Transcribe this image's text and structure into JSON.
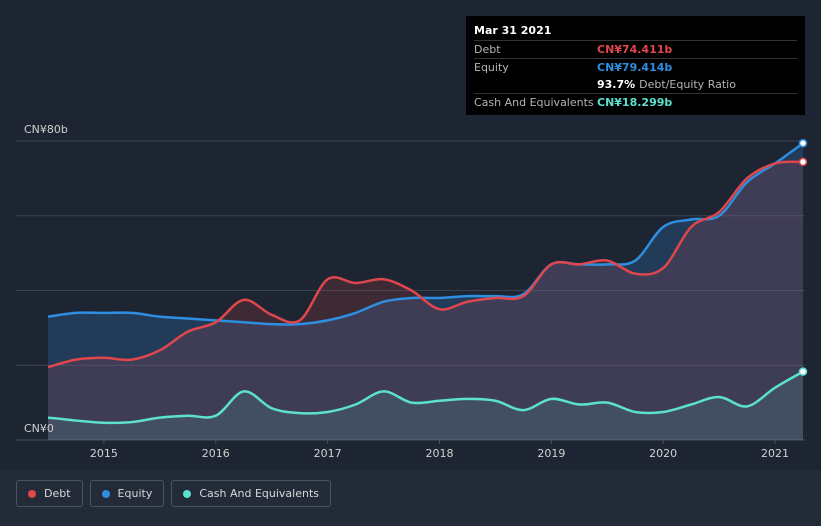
{
  "chart_data": {
    "type": "area",
    "currency_unit": "CN¥ b",
    "ylim": [
      0,
      80
    ],
    "y_tick_labels": [
      "CN¥0",
      "CN¥80b"
    ],
    "x_ticks": [
      2015,
      2016,
      2017,
      2018,
      2019,
      2020,
      2021
    ],
    "x_tick_labels": [
      "2015",
      "2016",
      "2017",
      "2018",
      "2019",
      "2020",
      "2021"
    ],
    "xlim": [
      2014.5,
      2021.25
    ],
    "grid": true,
    "legend_position": "bottom-left",
    "series": [
      {
        "name": "Debt",
        "color": "#e0474c",
        "x": [
          2014.5,
          2014.75,
          2015.0,
          2015.25,
          2015.5,
          2015.75,
          2016.0,
          2016.25,
          2016.5,
          2016.75,
          2017.0,
          2017.25,
          2017.5,
          2017.75,
          2018.0,
          2018.25,
          2018.5,
          2018.75,
          2019.0,
          2019.25,
          2019.5,
          2019.75,
          2020.0,
          2020.25,
          2020.5,
          2020.75,
          2021.0,
          2021.25
        ],
        "values": [
          19.5,
          21.5,
          22.0,
          21.5,
          24.0,
          29.0,
          31.5,
          37.5,
          33.5,
          32.0,
          43.0,
          42.0,
          43.0,
          40.0,
          35.0,
          37.0,
          38.0,
          38.5,
          47.0,
          47.0,
          48.0,
          44.5,
          46.0,
          57.0,
          61.0,
          70.0,
          74.0,
          74.411
        ]
      },
      {
        "name": "Equity",
        "color": "#2e8ee0",
        "x": [
          2014.5,
          2014.75,
          2015.0,
          2015.25,
          2015.5,
          2015.75,
          2016.0,
          2016.25,
          2016.5,
          2016.75,
          2017.0,
          2017.25,
          2017.5,
          2017.75,
          2018.0,
          2018.25,
          2018.5,
          2018.75,
          2019.0,
          2019.25,
          2019.5,
          2019.75,
          2020.0,
          2020.25,
          2020.5,
          2020.75,
          2021.0,
          2021.25
        ],
        "values": [
          33.0,
          34.0,
          34.0,
          34.0,
          33.0,
          32.5,
          32.0,
          31.5,
          31.0,
          31.0,
          32.0,
          34.0,
          37.0,
          38.0,
          38.0,
          38.5,
          38.5,
          39.0,
          47.0,
          47.0,
          47.0,
          48.0,
          57.0,
          59.0,
          60.0,
          69.0,
          74.0,
          79.414
        ]
      },
      {
        "name": "Cash And Equivalents",
        "color": "#5ce1cf",
        "x": [
          2014.5,
          2014.75,
          2015.0,
          2015.25,
          2015.5,
          2015.75,
          2016.0,
          2016.25,
          2016.5,
          2016.75,
          2017.0,
          2017.25,
          2017.5,
          2017.75,
          2018.0,
          2018.25,
          2018.5,
          2018.75,
          2019.0,
          2019.25,
          2019.5,
          2019.75,
          2020.0,
          2020.25,
          2020.5,
          2020.75,
          2021.0,
          2021.25
        ],
        "values": [
          6.0,
          5.2,
          4.6,
          4.8,
          6.0,
          6.5,
          6.5,
          13.0,
          8.5,
          7.2,
          7.5,
          9.5,
          13.0,
          10.0,
          10.5,
          11.0,
          10.5,
          8.0,
          11.0,
          9.5,
          10.0,
          7.5,
          7.5,
          9.5,
          11.5,
          9.0,
          14.0,
          18.299
        ]
      }
    ]
  },
  "tooltip": {
    "date": "Mar 31 2021",
    "debt_label": "Debt",
    "debt_value": "CN¥74.411b",
    "equity_label": "Equity",
    "equity_value": "CN¥79.414b",
    "ratio_value": "93.7%",
    "ratio_label": "Debt/Equity Ratio",
    "cash_label": "Cash And Equivalents",
    "cash_value": "CN¥18.299b"
  },
  "legend": {
    "debt": "Debt",
    "equity": "Equity",
    "cash": "Cash And Equivalents"
  },
  "colors": {
    "debt": "#e0474c",
    "equity": "#2e8ee0",
    "cash": "#5ce1cf",
    "background": "#232b38"
  }
}
